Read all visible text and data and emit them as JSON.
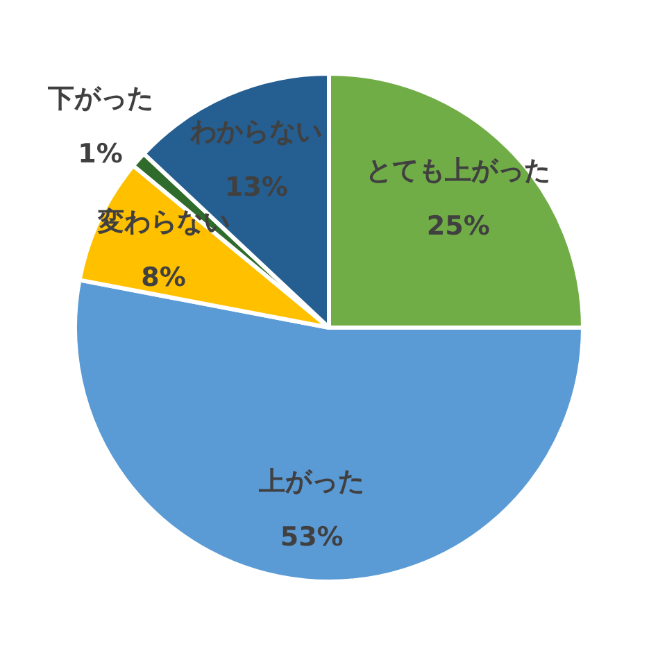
{
  "chart_data": {
    "type": "pie",
    "categories": [
      "とても上がった",
      "上がった",
      "変わらない",
      "下がった",
      "わからない"
    ],
    "values": [
      25,
      53,
      8,
      1,
      13
    ],
    "colors": [
      "#70ad47",
      "#5b9bd5",
      "#ffc000",
      "#2f6b2a",
      "#255e91"
    ],
    "value_labels": [
      "25%",
      "53%",
      "8%",
      "1%",
      "13%"
    ]
  }
}
